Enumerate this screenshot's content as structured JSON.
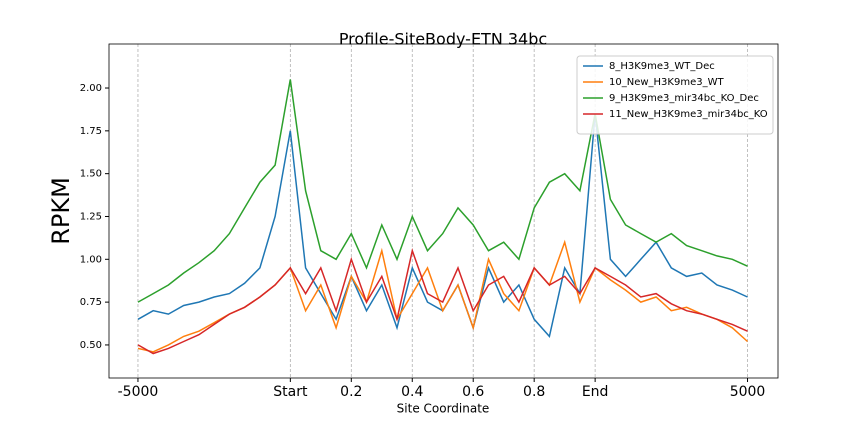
{
  "chart_data": {
    "type": "line",
    "title": "Profile-SiteBody-ETN 34bc",
    "x_label": "Site Coordinate",
    "y_label": "RPKM",
    "x": [
      0,
      10,
      20,
      30,
      40,
      50,
      60,
      70,
      80,
      90,
      100,
      110,
      120,
      130,
      140,
      150,
      160,
      170,
      180,
      190,
      200,
      210,
      220,
      230,
      240,
      250,
      260,
      270,
      280,
      290,
      300,
      310,
      320,
      330,
      340,
      350,
      360,
      370,
      380,
      390,
      400
    ],
    "series": [
      {
        "name": "8_H3K9me3_WT_Dec",
        "color": "#1f77b4",
        "values": [
          0.65,
          0.7,
          0.68,
          0.73,
          0.75,
          0.78,
          0.8,
          0.86,
          0.95,
          1.25,
          1.75,
          0.95,
          0.8,
          0.65,
          0.9,
          0.7,
          0.85,
          0.6,
          0.95,
          0.75,
          0.7,
          0.85,
          0.6,
          0.95,
          0.75,
          0.85,
          0.65,
          0.55,
          0.95,
          0.8,
          1.85,
          1.0,
          0.9,
          1.0,
          1.1,
          0.95,
          0.9,
          0.92,
          0.85,
          0.82,
          0.78
        ]
      },
      {
        "name": "10_New_H3K9me3_WT",
        "color": "#ff7f0e",
        "values": [
          0.48,
          0.46,
          0.5,
          0.55,
          0.58,
          0.63,
          0.68,
          0.72,
          0.78,
          0.85,
          0.95,
          0.7,
          0.85,
          0.6,
          0.9,
          0.75,
          1.05,
          0.65,
          0.8,
          0.95,
          0.7,
          0.85,
          0.6,
          1.0,
          0.8,
          0.7,
          0.95,
          0.85,
          1.1,
          0.75,
          0.95,
          0.88,
          0.82,
          0.75,
          0.78,
          0.7,
          0.72,
          0.68,
          0.65,
          0.6,
          0.52
        ]
      },
      {
        "name": "9_H3K9me3_mir34bc_KO_Dec",
        "color": "#2ca02c",
        "values": [
          0.75,
          0.8,
          0.85,
          0.92,
          0.98,
          1.05,
          1.15,
          1.3,
          1.45,
          1.55,
          2.05,
          1.4,
          1.05,
          1.0,
          1.15,
          0.95,
          1.2,
          1.0,
          1.25,
          1.05,
          1.15,
          1.3,
          1.2,
          1.05,
          1.1,
          1.0,
          1.3,
          1.45,
          1.5,
          1.4,
          1.85,
          1.35,
          1.2,
          1.15,
          1.1,
          1.15,
          1.08,
          1.05,
          1.02,
          1.0,
          0.96
        ]
      },
      {
        "name": "11_New_H3K9me3_mir34bc_KO",
        "color": "#d62728",
        "values": [
          0.5,
          0.45,
          0.48,
          0.52,
          0.56,
          0.62,
          0.68,
          0.72,
          0.78,
          0.85,
          0.95,
          0.8,
          0.95,
          0.7,
          1.0,
          0.75,
          0.9,
          0.65,
          1.05,
          0.8,
          0.75,
          0.95,
          0.7,
          0.85,
          0.9,
          0.75,
          0.95,
          0.85,
          0.9,
          0.8,
          0.95,
          0.9,
          0.85,
          0.78,
          0.8,
          0.74,
          0.7,
          0.68,
          0.65,
          0.62,
          0.58
        ]
      }
    ],
    "xlim": [
      -19,
      420
    ],
    "xticks": [
      {
        "value": 0,
        "label": "-5000"
      },
      {
        "value": 100,
        "label": "Start"
      },
      {
        "value": 140,
        "label": "0.2"
      },
      {
        "value": 180,
        "label": "0.4"
      },
      {
        "value": 220,
        "label": "0.6"
      },
      {
        "value": 260,
        "label": "0.8"
      },
      {
        "value": 300,
        "label": "End"
      },
      {
        "value": 400,
        "label": "5000"
      }
    ],
    "ylim": [
      0.307,
      2.257
    ],
    "yticks": [
      {
        "value": 0.5,
        "label": "0.50"
      },
      {
        "value": 0.75,
        "label": "0.75"
      },
      {
        "value": 1.0,
        "label": "1.00"
      },
      {
        "value": 1.25,
        "label": "1.25"
      },
      {
        "value": 1.5,
        "label": "1.50"
      },
      {
        "value": 1.75,
        "label": "1.75"
      },
      {
        "value": 2.0,
        "label": "2.00"
      }
    ],
    "grid": "x",
    "legend": "upper right"
  }
}
